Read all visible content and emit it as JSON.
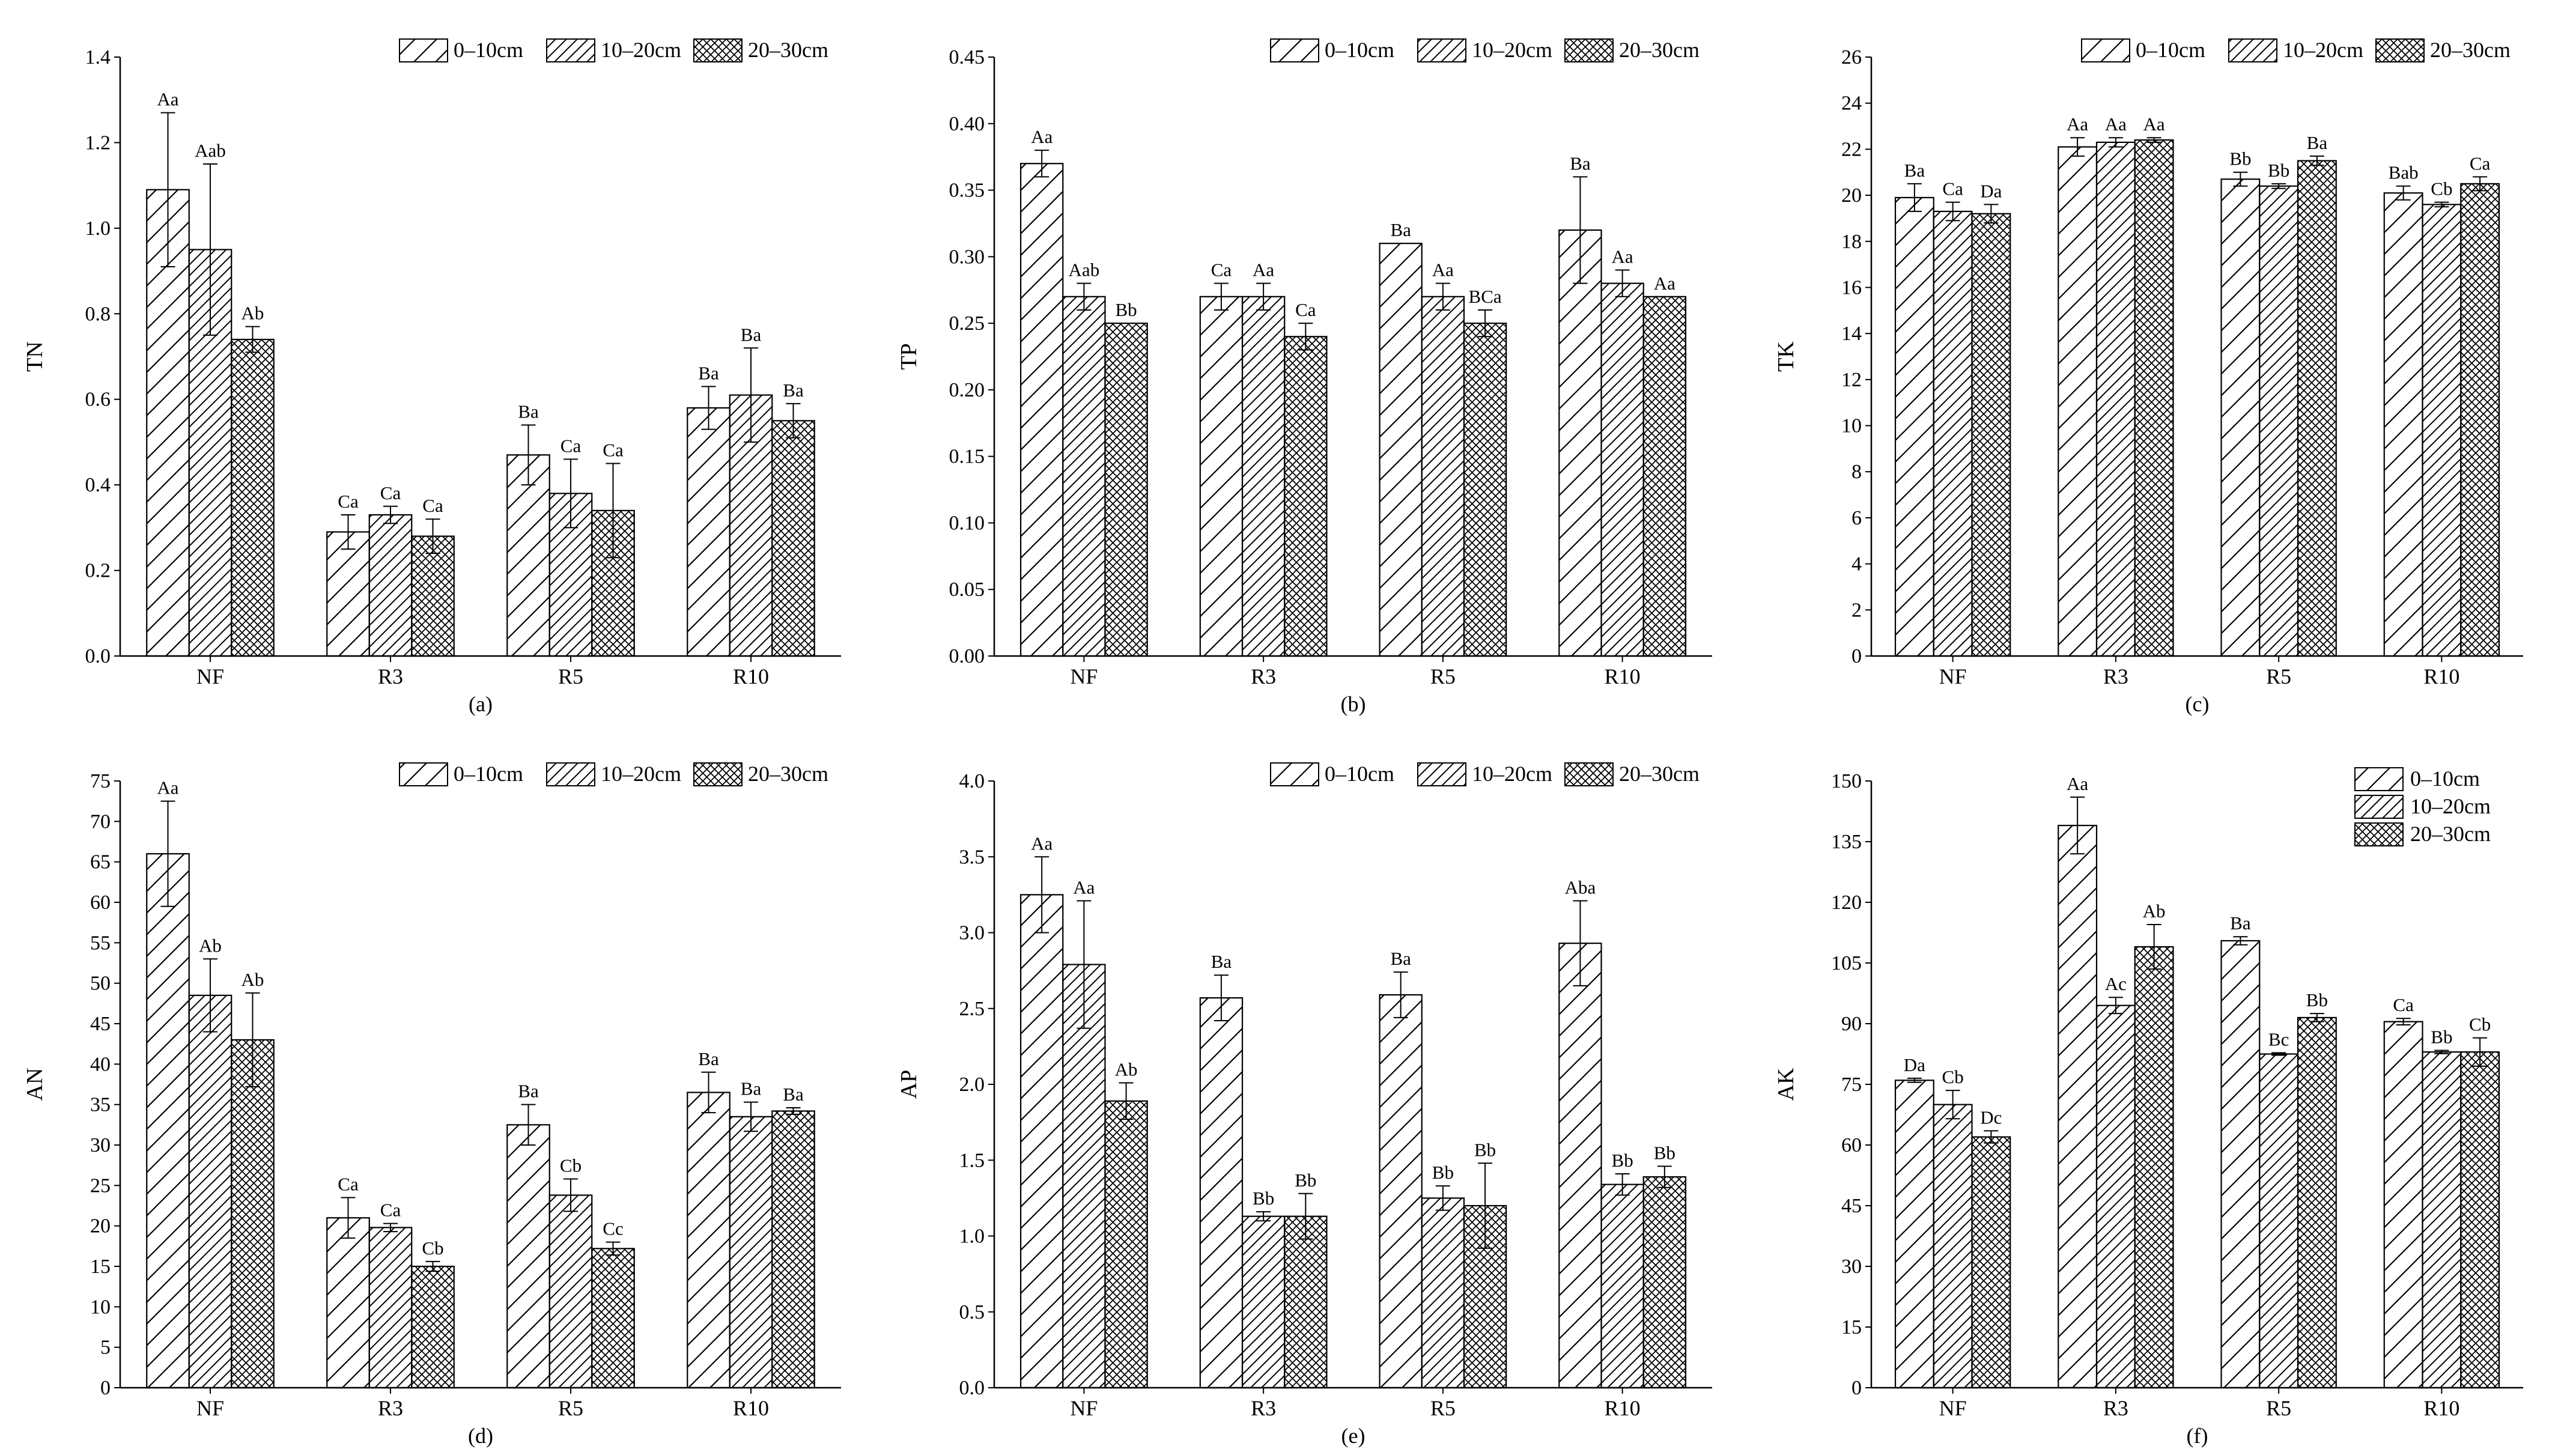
{
  "chart_data": [
    {
      "type": "bar",
      "panel": "(a)",
      "ylabel": "TN",
      "xlabel": "",
      "categories": [
        "NF",
        "R3",
        "R5",
        "R10"
      ],
      "ylim": [
        0,
        1.4
      ],
      "ytick_step": 0.2,
      "ytick_decimals": 1,
      "legend_position": "top-right",
      "legend_layout": "horizontal",
      "series": [
        {
          "name": "0–10cm",
          "values": [
            1.09,
            0.29,
            0.47,
            0.58
          ],
          "errors": [
            0.18,
            0.04,
            0.07,
            0.05
          ],
          "labels": [
            "Aa",
            "Ca",
            "Ba",
            "Ba"
          ]
        },
        {
          "name": "10–20cm",
          "values": [
            0.95,
            0.33,
            0.38,
            0.61
          ],
          "errors": [
            0.2,
            0.02,
            0.08,
            0.11
          ],
          "labels": [
            "Aab",
            "Ca",
            "Ca",
            "Ba"
          ]
        },
        {
          "name": "20–30cm",
          "values": [
            0.74,
            0.28,
            0.34,
            0.55
          ],
          "errors": [
            0.03,
            0.04,
            0.11,
            0.04
          ],
          "labels": [
            "Ab",
            "Ca",
            "Ca",
            "Ba"
          ]
        }
      ]
    },
    {
      "type": "bar",
      "panel": "(b)",
      "ylabel": "TP",
      "xlabel": "",
      "categories": [
        "NF",
        "R3",
        "R5",
        "R10"
      ],
      "ylim": [
        0,
        0.45
      ],
      "ytick_step": 0.05,
      "ytick_decimals": 2,
      "legend_position": "top-right",
      "legend_layout": "horizontal",
      "series": [
        {
          "name": "0–10cm",
          "values": [
            0.37,
            0.27,
            0.31,
            0.32
          ],
          "errors": [
            0.01,
            0.01,
            0.0,
            0.04
          ],
          "labels": [
            "Aa",
            "Ca",
            "Ba",
            "Ba"
          ]
        },
        {
          "name": "10–20cm",
          "values": [
            0.27,
            0.27,
            0.27,
            0.28
          ],
          "errors": [
            0.01,
            0.01,
            0.01,
            0.01
          ],
          "labels": [
            "Aab",
            "Aa",
            "Aa",
            "Aa"
          ]
        },
        {
          "name": "20–30cm",
          "values": [
            0.25,
            0.24,
            0.25,
            0.27
          ],
          "errors": [
            0.0,
            0.01,
            0.01,
            0.0
          ],
          "labels": [
            "Bb",
            "Ca",
            "BCa",
            "Aa"
          ]
        }
      ]
    },
    {
      "type": "bar",
      "panel": "(c)",
      "ylabel": "TK",
      "xlabel": "",
      "categories": [
        "NF",
        "R3",
        "R5",
        "R10"
      ],
      "ylim": [
        0,
        26
      ],
      "ytick_step": 2,
      "ytick_decimals": 0,
      "legend_position": "top-right",
      "legend_layout": "horizontal",
      "series": [
        {
          "name": "0–10cm",
          "values": [
            19.9,
            22.1,
            20.7,
            20.1
          ],
          "errors": [
            0.6,
            0.4,
            0.3,
            0.3
          ],
          "labels": [
            "Ba",
            "Aa",
            "Bb",
            "Bab"
          ]
        },
        {
          "name": "10–20cm",
          "values": [
            19.3,
            22.3,
            20.4,
            19.6
          ],
          "errors": [
            0.4,
            0.2,
            0.1,
            0.1
          ],
          "labels": [
            "Ca",
            "Aa",
            "Bb",
            "Cb"
          ]
        },
        {
          "name": "20–30cm",
          "values": [
            19.2,
            22.4,
            21.5,
            20.5
          ],
          "errors": [
            0.4,
            0.1,
            0.2,
            0.3
          ],
          "labels": [
            "Da",
            "Aa",
            "Ba",
            "Ca"
          ]
        }
      ]
    },
    {
      "type": "bar",
      "panel": "(d)",
      "ylabel": "AN",
      "xlabel": "",
      "categories": [
        "NF",
        "R3",
        "R5",
        "R10"
      ],
      "ylim": [
        0,
        75
      ],
      "ytick_step": 5,
      "ytick_decimals": 0,
      "legend_position": "top-right",
      "legend_layout": "horizontal",
      "series": [
        {
          "name": "0–10cm",
          "values": [
            66.0,
            21.0,
            32.5,
            36.5
          ],
          "errors": [
            6.5,
            2.5,
            2.5,
            2.5
          ],
          "labels": [
            "Aa",
            "Ca",
            "Ba",
            "Ba"
          ]
        },
        {
          "name": "10–20cm",
          "values": [
            48.5,
            19.8,
            23.8,
            33.5
          ],
          "errors": [
            4.5,
            0.5,
            2.0,
            1.8
          ],
          "labels": [
            "Ab",
            "Ca",
            "Cb",
            "Ba"
          ]
        },
        {
          "name": "20–30cm",
          "values": [
            43.0,
            15.0,
            17.2,
            34.2
          ],
          "errors": [
            5.8,
            0.6,
            0.8,
            0.4
          ],
          "labels": [
            "Ab",
            "Cb",
            "Cc",
            "Ba"
          ]
        }
      ]
    },
    {
      "type": "bar",
      "panel": "(e)",
      "ylabel": "AP",
      "xlabel": "",
      "categories": [
        "NF",
        "R3",
        "R5",
        "R10"
      ],
      "ylim": [
        0,
        4.0
      ],
      "ytick_step": 0.5,
      "ytick_decimals": 1,
      "legend_position": "top-right",
      "legend_layout": "horizontal",
      "series": [
        {
          "name": "0–10cm",
          "values": [
            3.25,
            2.57,
            2.59,
            2.93
          ],
          "errors": [
            0.25,
            0.15,
            0.15,
            0.28
          ],
          "labels": [
            "Aa",
            "Ba",
            "Ba",
            "Aba"
          ]
        },
        {
          "name": "10–20cm",
          "values": [
            2.79,
            1.13,
            1.25,
            1.34
          ],
          "errors": [
            0.42,
            0.03,
            0.08,
            0.07
          ],
          "labels": [
            "Aa",
            "Bb",
            "Bb",
            "Bb"
          ]
        },
        {
          "name": "20–30cm",
          "values": [
            1.89,
            1.13,
            1.2,
            1.39
          ],
          "errors": [
            0.12,
            0.15,
            0.28,
            0.07
          ],
          "labels": [
            "Ab",
            "Bb",
            "Bb",
            "Bb"
          ]
        }
      ]
    },
    {
      "type": "bar",
      "panel": "(f)",
      "ylabel": "AK",
      "xlabel": "",
      "categories": [
        "NF",
        "R3",
        "R5",
        "R10"
      ],
      "ylim": [
        0,
        150
      ],
      "ytick_step": 15,
      "ytick_decimals": 0,
      "legend_position": "top-right",
      "legend_layout": "vertical",
      "series": [
        {
          "name": "0–10cm",
          "values": [
            76.0,
            139.0,
            110.5,
            90.5
          ],
          "errors": [
            0.5,
            7.0,
            1.0,
            0.8
          ],
          "labels": [
            "Da",
            "Aa",
            "Ba",
            "Ca"
          ]
        },
        {
          "name": "10–20cm",
          "values": [
            70.0,
            94.5,
            82.5,
            83.0
          ],
          "errors": [
            3.5,
            2.0,
            0.3,
            0.4
          ],
          "labels": [
            "Cb",
            "Ac",
            "Bc",
            "Bb"
          ]
        },
        {
          "name": "20–30cm",
          "values": [
            62.0,
            109.0,
            91.5,
            83.0
          ],
          "errors": [
            1.5,
            5.5,
            1.0,
            3.5
          ],
          "labels": [
            "Dc",
            "Ab",
            "Bb",
            "Cb"
          ]
        }
      ]
    }
  ]
}
